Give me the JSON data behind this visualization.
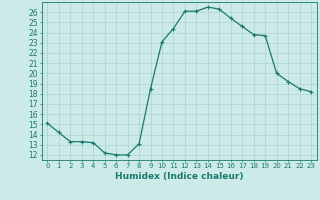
{
  "xlabel": "Humidex (Indice chaleur)",
  "x": [
    0,
    1,
    2,
    3,
    4,
    5,
    6,
    7,
    8,
    9,
    10,
    11,
    12,
    13,
    14,
    15,
    16,
    17,
    18,
    19,
    20,
    21,
    22,
    23
  ],
  "y": [
    15.1,
    14.2,
    13.3,
    13.3,
    13.2,
    12.2,
    12.0,
    12.0,
    13.1,
    18.5,
    23.1,
    24.4,
    26.1,
    26.1,
    26.5,
    26.3,
    25.4,
    24.6,
    23.8,
    23.7,
    20.0,
    19.2,
    18.5,
    18.2
  ],
  "line_color": "#1a7a6e",
  "bg_color": "#cceae7",
  "grid_color": "#aad4d0",
  "ylim": [
    11.5,
    27.0
  ],
  "xlim": [
    -0.5,
    23.5
  ],
  "yticks": [
    12,
    13,
    14,
    15,
    16,
    17,
    18,
    19,
    20,
    21,
    22,
    23,
    24,
    25,
    26
  ],
  "xticks": [
    0,
    1,
    2,
    3,
    4,
    5,
    6,
    7,
    8,
    9,
    10,
    11,
    12,
    13,
    14,
    15,
    16,
    17,
    18,
    19,
    20,
    21,
    22,
    23
  ],
  "xlabel_fontsize": 6.5,
  "ytick_fontsize": 5.5,
  "xtick_fontsize": 5.0,
  "marker": "+",
  "marker_size": 3,
  "linewidth": 0.9
}
